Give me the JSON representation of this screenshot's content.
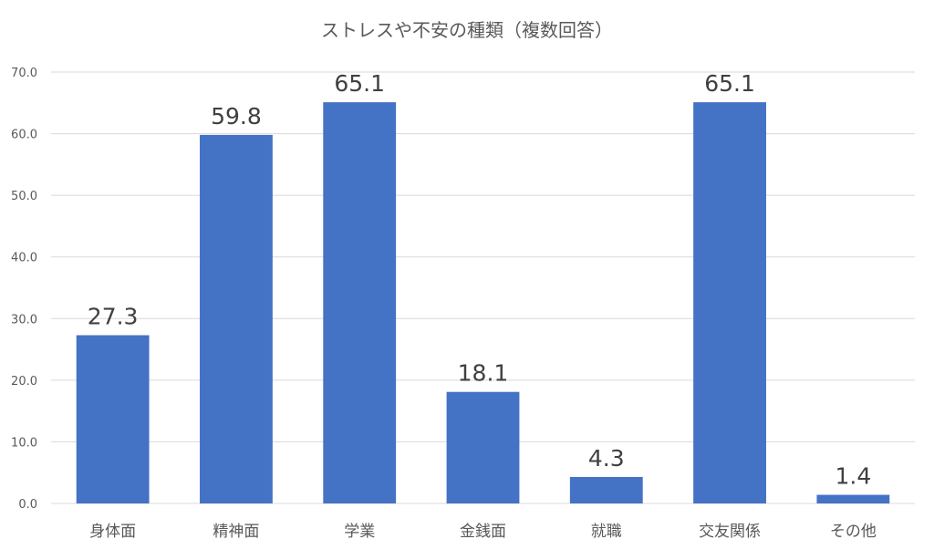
{
  "chart_data": {
    "type": "bar",
    "title": "ストレスや不安の種類（複数回答）",
    "categories": [
      "身体面",
      "精神面",
      "学業",
      "金銭面",
      "就職",
      "交友関係",
      "その他"
    ],
    "values": [
      27.3,
      59.8,
      65.1,
      18.1,
      4.3,
      65.1,
      1.4
    ],
    "data_labels": [
      "27.3",
      "59.8",
      "65.1",
      "18.1",
      "4.3",
      "65.1",
      "1.4"
    ],
    "ylim": [
      0,
      70
    ],
    "yticks": [
      0,
      10,
      20,
      30,
      40,
      50,
      60,
      70
    ],
    "ytick_labels": [
      "0.0",
      "10.0",
      "20.0",
      "30.0",
      "40.0",
      "50.0",
      "60.0",
      "70.0"
    ],
    "grid": true,
    "bar_color": "#4472c4"
  }
}
